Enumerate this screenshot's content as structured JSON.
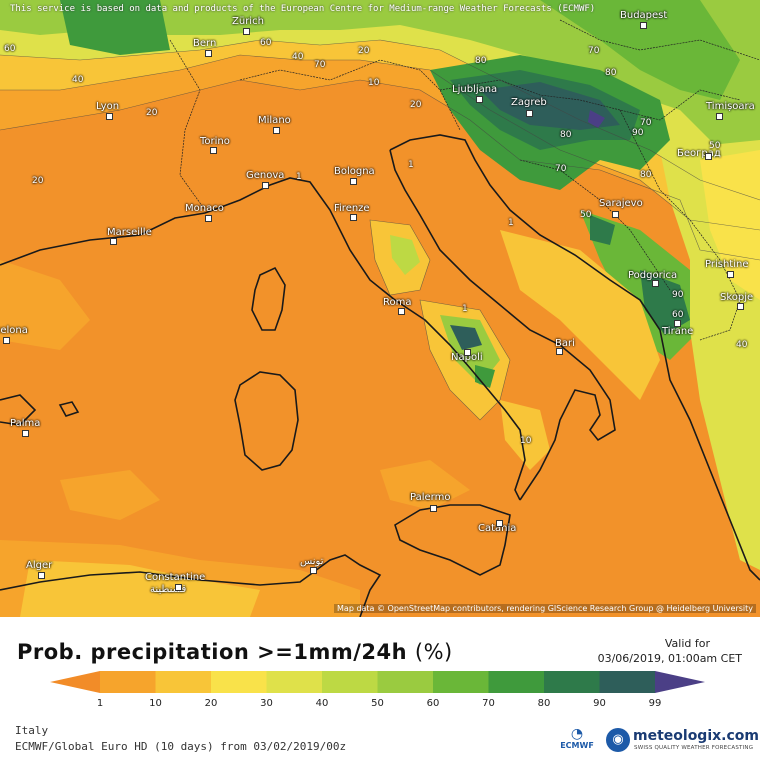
{
  "map": {
    "credit_top": "This service is based on data and products of the European Centre for Medium-range Weather Forecasts (ECMWF)",
    "credit_bottom": "Map data © OpenStreetMap contributors, rendering GIScience Research Group @ Heidelberg University",
    "cities": [
      {
        "name": "Budapest"
      },
      {
        "name": "Zürich"
      },
      {
        "name": "Bern"
      },
      {
        "name": "Ljubljana"
      },
      {
        "name": "Zagreb"
      },
      {
        "name": "Lyon"
      },
      {
        "name": "Milano"
      },
      {
        "name": "Timișoara"
      },
      {
        "name": "Torino"
      },
      {
        "name": "Београд"
      },
      {
        "name": "Genova"
      },
      {
        "name": "Bologna"
      },
      {
        "name": "Monaco"
      },
      {
        "name": "Firenze"
      },
      {
        "name": "Marseille"
      },
      {
        "name": "Sarajevo"
      },
      {
        "name": "Podgorica"
      },
      {
        "name": "Prishtine"
      },
      {
        "name": "Skopje"
      },
      {
        "name": "Roma"
      },
      {
        "name": "Tirane"
      },
      {
        "name": "Barcelona"
      },
      {
        "name": "Napoli"
      },
      {
        "name": "Bari"
      },
      {
        "name": "Palma"
      },
      {
        "name": "Palermo"
      },
      {
        "name": "Catania"
      },
      {
        "name": "Alger"
      },
      {
        "name": "Constantine"
      },
      {
        "name": "قسنطينة"
      },
      {
        "name": "تونس"
      }
    ],
    "contour_labels": [
      "60",
      "40",
      "20",
      "20",
      "60",
      "40",
      "70",
      "20",
      "10",
      "20",
      "1",
      "80",
      "70",
      "80",
      "80",
      "70",
      "90",
      "50",
      "80",
      "70",
      "50",
      "90",
      "60",
      "40",
      "1",
      "1",
      "1",
      "10"
    ]
  },
  "title": "Prob. precipitation >=1mm/24h",
  "unit": "(%)",
  "valid_label": "Valid for",
  "valid_time": "03/06/2019, 01:00am CET",
  "legend": {
    "ticks": [
      "1",
      "10",
      "20",
      "30",
      "40",
      "50",
      "60",
      "70",
      "80",
      "90",
      "99"
    ],
    "colors": [
      "#f28c28",
      "#f6a42c",
      "#f8c538",
      "#f9e24a",
      "#dfe14a",
      "#bdd944",
      "#9acb40",
      "#6ab738",
      "#3f9a3c",
      "#2e7a4a",
      "#2e5e5a",
      "#4b3f86"
    ]
  },
  "region": "Italy",
  "model_line": "ECMWF/Global Euro HD (10 days) from 03/02/2019/00z",
  "logos": {
    "ecmwf": "ECMWF",
    "meteologix": "meteologix.com",
    "meteologix_tag": "SWISS QUALITY WEATHER FORECASTING"
  }
}
